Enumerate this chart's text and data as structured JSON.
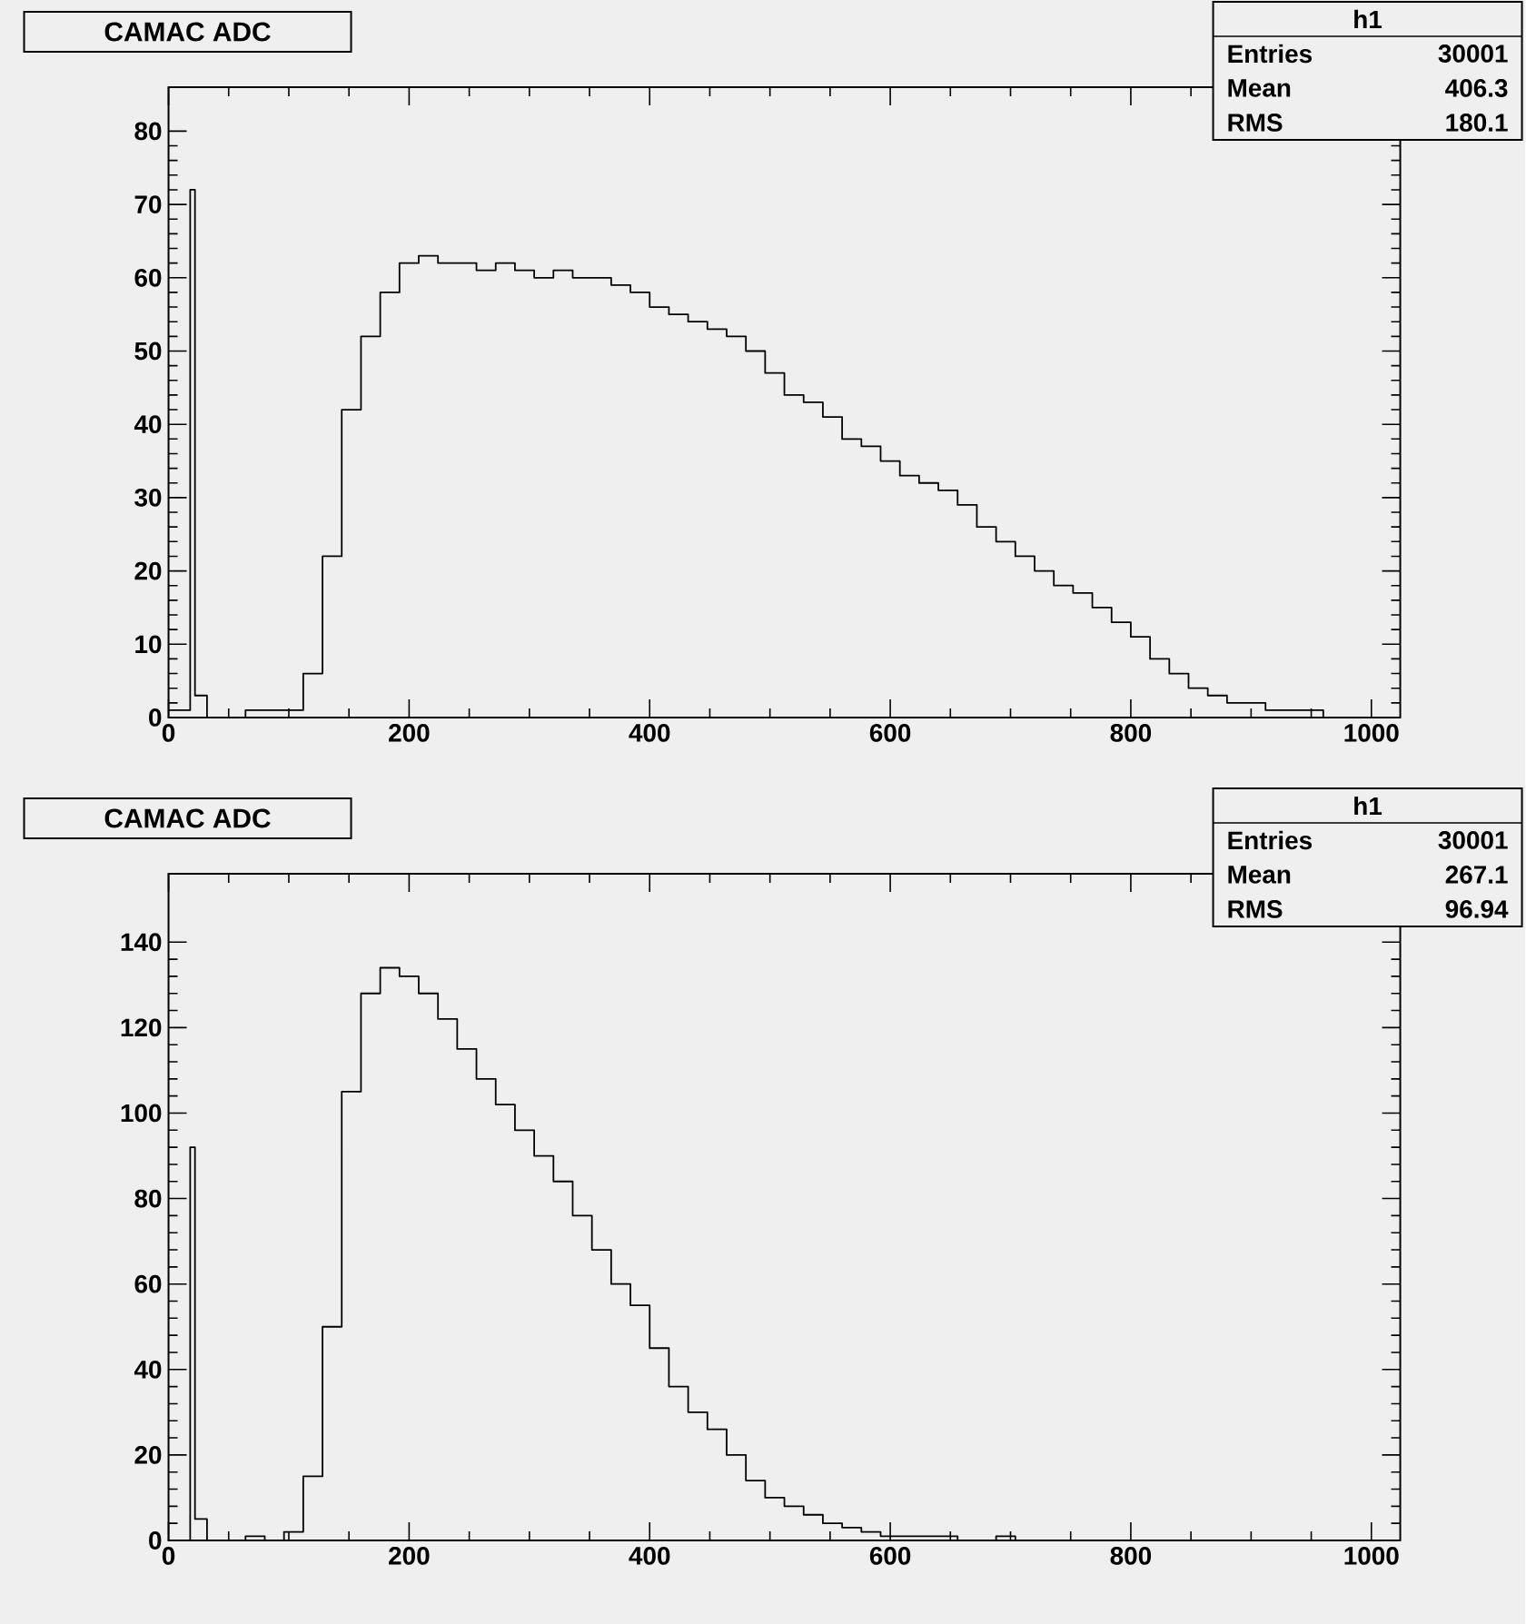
{
  "chart_data": [
    {
      "type": "histogram",
      "title": "CAMAC ADC",
      "color": "#000000",
      "annotations": [
        "h1",
        "Entries",
        "30001",
        "Mean",
        "406.3",
        "RMS",
        "180.1"
      ],
      "bins": [
        0,
        18,
        22,
        32,
        48,
        64,
        80,
        96,
        112,
        128,
        144,
        160,
        176,
        192,
        208,
        224,
        240,
        256,
        272,
        288,
        304,
        320,
        336,
        352,
        368,
        384,
        400,
        416,
        432,
        448,
        464,
        480,
        496,
        512,
        528,
        544,
        560,
        576,
        592,
        608,
        624,
        640,
        656,
        672,
        688,
        704,
        720,
        736,
        752,
        768,
        784,
        800,
        816,
        832,
        848,
        864,
        880,
        896,
        912,
        928,
        944,
        960,
        976,
        992,
        1008,
        1024
      ],
      "values": [
        1,
        72,
        3,
        0,
        0,
        1,
        1,
        1,
        6,
        22,
        42,
        52,
        58,
        62,
        63,
        62,
        62,
        61,
        62,
        61,
        60,
        61,
        60,
        60,
        59,
        58,
        56,
        55,
        54,
        53,
        52,
        50,
        47,
        44,
        43,
        41,
        38,
        37,
        35,
        33,
        32,
        31,
        29,
        26,
        24,
        22,
        20,
        18,
        17,
        15,
        13,
        11,
        8,
        6,
        4,
        3,
        2,
        2,
        1,
        1,
        1,
        0,
        0,
        0,
        0
      ],
      "xlim": [
        0,
        1024
      ],
      "ylim": [
        0,
        86
      ],
      "xticks": [
        0,
        200,
        400,
        600,
        800,
        1000
      ],
      "yticks": [
        0,
        10,
        20,
        30,
        40,
        50,
        60,
        70,
        80
      ]
    },
    {
      "type": "histogram",
      "title": "CAMAC ADC",
      "color": "#000000",
      "annotations": [
        "h1",
        "Entries",
        "30001",
        "Mean",
        "267.1",
        "RMS",
        "96.94"
      ],
      "bins": [
        0,
        18,
        22,
        32,
        48,
        64,
        80,
        96,
        112,
        128,
        144,
        160,
        176,
        192,
        208,
        224,
        240,
        256,
        272,
        288,
        304,
        320,
        336,
        352,
        368,
        384,
        400,
        416,
        432,
        448,
        464,
        480,
        496,
        512,
        528,
        544,
        560,
        576,
        592,
        608,
        624,
        640,
        656,
        672,
        688,
        704,
        720,
        736,
        752,
        768,
        784,
        800,
        816,
        832,
        848,
        864,
        880,
        896,
        912,
        928,
        944,
        960,
        976,
        992,
        1008,
        1024
      ],
      "values": [
        0,
        92,
        5,
        0,
        0,
        1,
        0,
        2,
        15,
        50,
        105,
        128,
        134,
        132,
        128,
        122,
        115,
        108,
        102,
        96,
        90,
        84,
        76,
        68,
        60,
        55,
        45,
        36,
        30,
        26,
        20,
        14,
        10,
        8,
        6,
        4,
        3,
        2,
        1,
        1,
        1,
        1,
        0,
        0,
        1,
        0,
        0,
        0,
        0,
        0,
        0,
        0,
        0,
        0,
        0,
        0,
        0,
        0,
        0,
        0,
        0,
        0,
        0,
        0,
        0
      ],
      "xlim": [
        0,
        1024
      ],
      "ylim": [
        0,
        156
      ],
      "xticks": [
        0,
        200,
        400,
        600,
        800,
        1000
      ],
      "yticks": [
        0,
        20,
        40,
        60,
        80,
        100,
        120,
        140
      ]
    }
  ]
}
